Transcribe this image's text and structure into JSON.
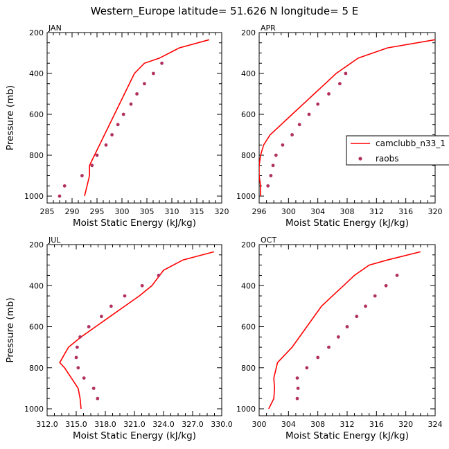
{
  "figure": {
    "title": "Western_Europe  latitude= 51.626 N longitude= 5 E",
    "ylabel": "Pressure (mb)",
    "xlabel": "Moist Static Energy (kJ/kg)"
  },
  "colors": {
    "model": "#ff0000",
    "obs": "#b03060",
    "axis": "#000000",
    "background": "#ffffff"
  },
  "legend": {
    "entries": [
      {
        "label": "camclubb_n33_1",
        "style": "line"
      },
      {
        "label": "raobs",
        "style": "marker"
      }
    ]
  },
  "chart_data": [
    {
      "type": "line",
      "panel": "JAN",
      "xlabel": "Moist Static Energy (kJ/kg)",
      "ylabel": "Pressure (mb)",
      "xlim": [
        285,
        320
      ],
      "ylim": [
        200,
        1025
      ],
      "y_inverted": true,
      "xticks": [
        "285",
        "290",
        "295",
        "300",
        "305",
        "310",
        "315",
        "320"
      ],
      "yticks": [
        "200",
        "400",
        "600",
        "800",
        "1000"
      ],
      "series": [
        {
          "name": "camclubb_n33_1",
          "style": "line",
          "points": [
            [
              292.5,
              1000
            ],
            [
              293,
              950
            ],
            [
              293.5,
              900
            ],
            [
              293.5,
              850
            ],
            [
              294,
              825
            ],
            [
              295,
              775
            ],
            [
              296.5,
              700
            ],
            [
              298.5,
              600
            ],
            [
              300.5,
              500
            ],
            [
              302.5,
              400
            ],
            [
              304.5,
              350
            ],
            [
              307.5,
              325
            ],
            [
              311.5,
              275
            ],
            [
              317.5,
              235
            ]
          ]
        },
        {
          "name": "raobs",
          "style": "marker",
          "points": [
            [
              287.5,
              1000
            ],
            [
              288.5,
              950
            ],
            [
              292,
              900
            ],
            [
              294,
              850
            ],
            [
              295,
              800
            ],
            [
              296.8,
              750
            ],
            [
              298,
              700
            ],
            [
              299.2,
              650
            ],
            [
              300.3,
              600
            ],
            [
              301.8,
              550
            ],
            [
              303,
              500
            ],
            [
              304.5,
              450
            ],
            [
              306.3,
              400
            ],
            [
              308,
              350
            ]
          ]
        }
      ]
    },
    {
      "type": "line",
      "panel": "APR",
      "xlabel": "Moist Static Energy (kJ/kg)",
      "ylabel": "",
      "xlim": [
        296,
        320
      ],
      "ylim": [
        200,
        1025
      ],
      "y_inverted": true,
      "xticks": [
        "296",
        "300",
        "304",
        "308",
        "312",
        "316",
        "320"
      ],
      "yticks": [
        "200",
        "400",
        "600",
        "800",
        "1000"
      ],
      "series": [
        {
          "name": "camclubb_n33_1",
          "style": "line",
          "points": [
            [
              296.2,
              1000
            ],
            [
              296.2,
              950
            ],
            [
              296,
              900
            ],
            [
              296,
              850
            ],
            [
              296.2,
              800
            ],
            [
              296.6,
              750
            ],
            [
              297.5,
              700
            ],
            [
              299,
              650
            ],
            [
              300.5,
              600
            ],
            [
              302,
              550
            ],
            [
              303.5,
              500
            ],
            [
              305,
              450
            ],
            [
              306.5,
              400
            ],
            [
              307.5,
              375
            ],
            [
              309.5,
              325
            ],
            [
              313.5,
              275
            ],
            [
              320,
              235
            ]
          ]
        },
        {
          "name": "raobs",
          "style": "marker",
          "points": [
            [
              297.2,
              950
            ],
            [
              297.6,
              900
            ],
            [
              297.9,
              850
            ],
            [
              298.3,
              800
            ],
            [
              299.2,
              750
            ],
            [
              300.5,
              700
            ],
            [
              301.5,
              650
            ],
            [
              302.8,
              600
            ],
            [
              304,
              550
            ],
            [
              305.5,
              500
            ],
            [
              307,
              450
            ],
            [
              307.8,
              400
            ]
          ]
        }
      ]
    },
    {
      "type": "line",
      "panel": "JUL",
      "xlabel": "Moist Static Energy (kJ/kg)",
      "ylabel": "Pressure (mb)",
      "xlim": [
        312,
        330
      ],
      "ylim": [
        200,
        1025
      ],
      "y_inverted": true,
      "xticks": [
        "312.0",
        "315.0",
        "318.0",
        "321.0",
        "324.0",
        "327.0",
        "330.0"
      ],
      "yticks": [
        "200",
        "400",
        "600",
        "800",
        "1000"
      ],
      "series": [
        {
          "name": "camclubb_n33_1",
          "style": "line",
          "points": [
            [
              315.5,
              1000
            ],
            [
              315.4,
              950
            ],
            [
              315.2,
              900
            ],
            [
              314.5,
              850
            ],
            [
              313.8,
              800
            ],
            [
              313.3,
              775
            ],
            [
              314.2,
              700
            ],
            [
              315.5,
              650
            ],
            [
              317,
              600
            ],
            [
              318.5,
              550
            ],
            [
              320,
              500
            ],
            [
              321.5,
              450
            ],
            [
              322.8,
              400
            ],
            [
              324,
              325
            ],
            [
              326,
              275
            ],
            [
              329.2,
              235
            ]
          ]
        },
        {
          "name": "raobs",
          "style": "marker",
          "points": [
            [
              317.2,
              950
            ],
            [
              316.8,
              900
            ],
            [
              315.8,
              850
            ],
            [
              315.2,
              800
            ],
            [
              315,
              750
            ],
            [
              315.1,
              700
            ],
            [
              315.4,
              650
            ],
            [
              316.3,
              600
            ],
            [
              317.6,
              550
            ],
            [
              318.6,
              500
            ],
            [
              320,
              450
            ],
            [
              321.8,
              400
            ],
            [
              323.5,
              350
            ]
          ]
        }
      ]
    },
    {
      "type": "line",
      "panel": "OCT",
      "xlabel": "Moist Static Energy (kJ/kg)",
      "ylabel": "",
      "xlim": [
        300,
        324
      ],
      "ylim": [
        200,
        1025
      ],
      "y_inverted": true,
      "xticks": [
        "300",
        "304",
        "308",
        "312",
        "316",
        "320",
        "324"
      ],
      "yticks": [
        "200",
        "400",
        "600",
        "800",
        "1000"
      ],
      "series": [
        {
          "name": "camclubb_n33_1",
          "style": "line",
          "points": [
            [
              301.3,
              1000
            ],
            [
              302,
              950
            ],
            [
              302.1,
              900
            ],
            [
              302,
              850
            ],
            [
              302.5,
              775
            ],
            [
              304.5,
              700
            ],
            [
              306.5,
              600
            ],
            [
              308.5,
              500
            ],
            [
              310,
              450
            ],
            [
              311.5,
              400
            ],
            [
              313,
              350
            ],
            [
              315,
              300
            ],
            [
              317.5,
              275
            ],
            [
              322,
              235
            ]
          ]
        },
        {
          "name": "raobs",
          "style": "marker",
          "points": [
            [
              305.2,
              950
            ],
            [
              305.3,
              900
            ],
            [
              305.2,
              850
            ],
            [
              306.5,
              800
            ],
            [
              308,
              750
            ],
            [
              309.5,
              700
            ],
            [
              310.8,
              650
            ],
            [
              312,
              600
            ],
            [
              313.3,
              550
            ],
            [
              314.5,
              500
            ],
            [
              315.8,
              450
            ],
            [
              317.3,
              400
            ],
            [
              318.8,
              350
            ]
          ]
        }
      ]
    }
  ]
}
